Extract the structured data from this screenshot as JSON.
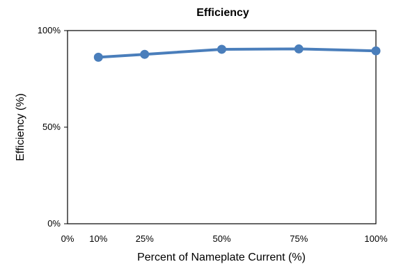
{
  "chart_data": {
    "type": "line",
    "title": "Efficiency",
    "xlabel": "Percent of Nameplate Current (%)",
    "ylabel": "Efficiency (%)",
    "xlim": [
      0,
      100
    ],
    "ylim": [
      0,
      100
    ],
    "x_ticks": [
      {
        "value": 0,
        "label": "0%"
      },
      {
        "value": 10,
        "label": "10%"
      },
      {
        "value": 25,
        "label": "25%"
      },
      {
        "value": 50,
        "label": "50%"
      },
      {
        "value": 75,
        "label": "75%"
      },
      {
        "value": 100,
        "label": "100%"
      }
    ],
    "y_ticks": [
      {
        "value": 0,
        "label": "0%"
      },
      {
        "value": 50,
        "label": "50%"
      },
      {
        "value": 100,
        "label": "100%"
      }
    ],
    "grid": false,
    "legend": "none",
    "series": [
      {
        "color": "#4a7ebb",
        "points": [
          {
            "x": 10,
            "y": 86.2
          },
          {
            "x": 25,
            "y": 87.7
          },
          {
            "x": 50,
            "y": 90.3
          },
          {
            "x": 75,
            "y": 90.5
          },
          {
            "x": 100,
            "y": 89.5
          }
        ]
      }
    ]
  }
}
